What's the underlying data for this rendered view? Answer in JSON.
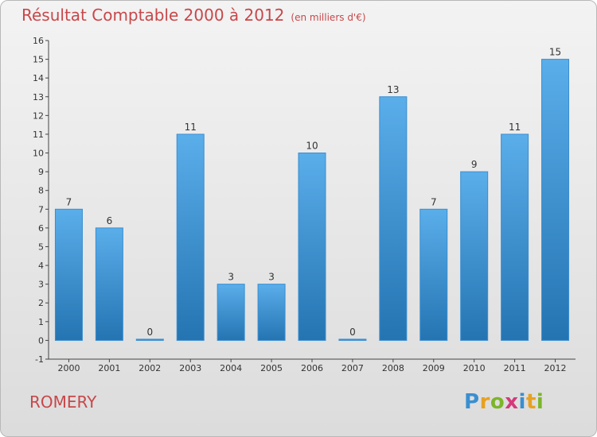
{
  "header": {
    "title": "Résultat Comptable 2000 à 2012",
    "unit": "(en milliers d'€)"
  },
  "footer": {
    "town": "ROMERY",
    "brand": [
      "P",
      "r",
      "o",
      "x",
      "i",
      "t",
      "i"
    ],
    "brand_colors": [
      "#3a8fd0",
      "#e8a120",
      "#7cb52a",
      "#d43a7a",
      "#3a8fd0",
      "#e8a120",
      "#7cb52a"
    ]
  },
  "colors": {
    "bar": "#4a9ee0",
    "bar_dark": "#2878b8",
    "title": "#c8474a"
  },
  "chart_data": {
    "type": "bar",
    "categories": [
      "2000",
      "2001",
      "2002",
      "2003",
      "2004",
      "2005",
      "2006",
      "2007",
      "2008",
      "2009",
      "2010",
      "2011",
      "2012"
    ],
    "values": [
      7,
      6,
      0,
      11,
      3,
      3,
      10,
      0,
      13,
      7,
      9,
      11,
      15
    ],
    "ylim": [
      -1,
      16
    ],
    "yticks": [
      -1,
      0,
      1,
      2,
      3,
      4,
      5,
      6,
      7,
      8,
      9,
      10,
      11,
      12,
      13,
      14,
      15,
      16
    ],
    "grid": false
  }
}
